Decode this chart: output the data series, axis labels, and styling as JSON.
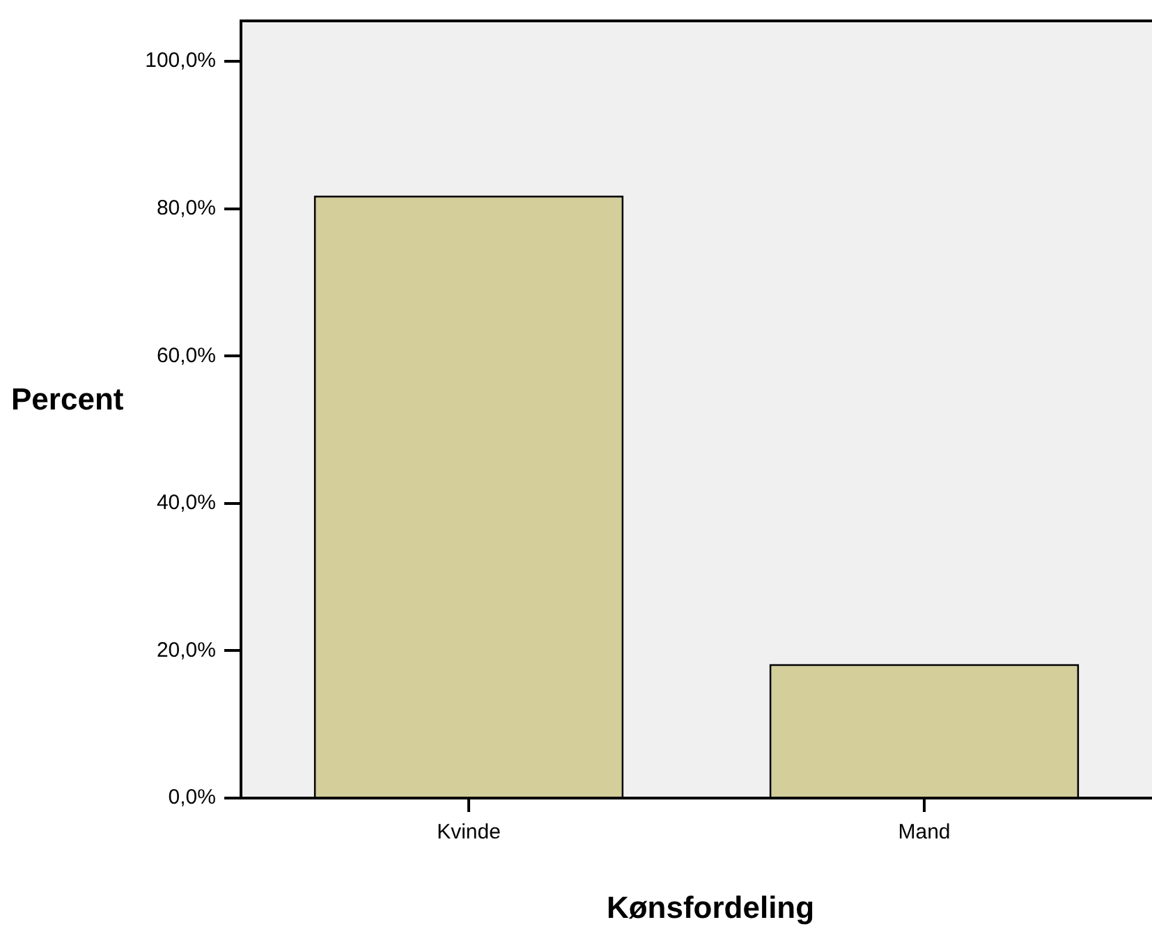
{
  "chart_data": {
    "type": "bar",
    "xlabel": "Kønsfordeling",
    "ylabel": "Percent",
    "categories": [
      "Kvinde",
      "Mand"
    ],
    "values": [
      81.8,
      18.2
    ],
    "color": "#d3ce9a",
    "ylim": [
      0,
      105.5
    ],
    "yticks": [
      {
        "value": 0,
        "label": "0,0%"
      },
      {
        "value": 20,
        "label": "20,0%"
      },
      {
        "value": 40,
        "label": "40,0%"
      },
      {
        "value": 60,
        "label": "60,0%"
      },
      {
        "value": 80,
        "label": "80,0%"
      },
      {
        "value": 100,
        "label": "100,0%"
      }
    ],
    "grid": false,
    "legend": false
  }
}
